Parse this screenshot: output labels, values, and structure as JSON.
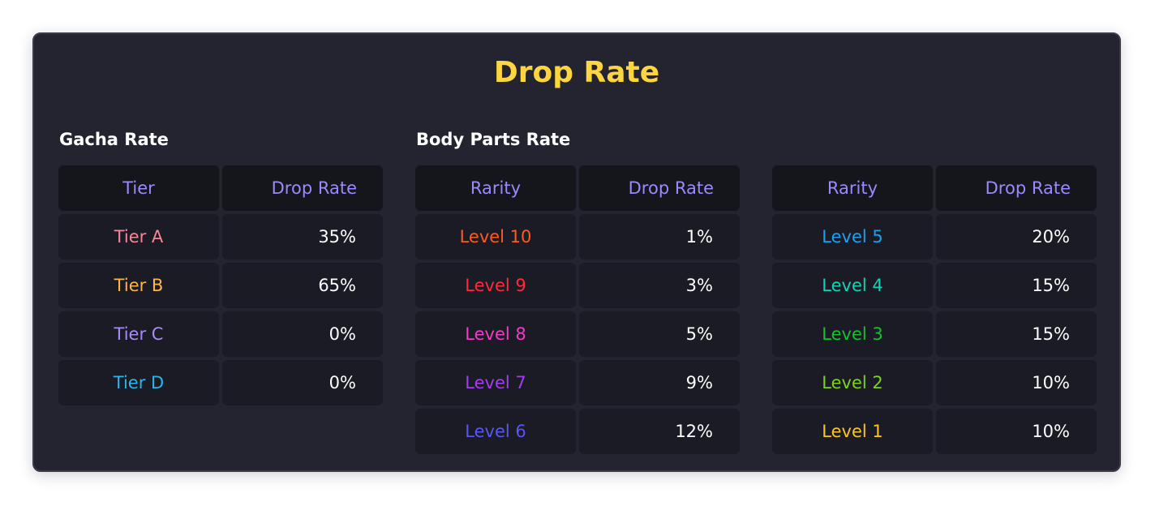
{
  "title": "Drop Rate",
  "colors": {
    "title": "#fcd53f",
    "header_text": "#9b8afb",
    "panel_bg": "#232430",
    "cell_bg": "#1a1b24"
  },
  "gacha": {
    "section_title": "Gacha Rate",
    "headers": [
      "Tier",
      "Drop Rate"
    ],
    "rows": [
      {
        "label": "Tier A",
        "rate": "35%",
        "color": "#f5879a"
      },
      {
        "label": "Tier B",
        "rate": "65%",
        "color": "#fdb44a"
      },
      {
        "label": "Tier C",
        "rate": "0%",
        "color": "#a98bf8"
      },
      {
        "label": "Tier D",
        "rate": "0%",
        "color": "#2cb5e8"
      }
    ]
  },
  "body_parts": {
    "section_title": "Body Parts Rate",
    "left_table": {
      "headers": [
        "Rarity",
        "Drop Rate"
      ],
      "rows": [
        {
          "label": "Level 10",
          "rate": "1%",
          "color": "#ff5a1f"
        },
        {
          "label": "Level 9",
          "rate": "3%",
          "color": "#ff2a3a"
        },
        {
          "label": "Level 8",
          "rate": "5%",
          "color": "#f33ac8"
        },
        {
          "label": "Level 7",
          "rate": "9%",
          "color": "#a63cf0"
        },
        {
          "label": "Level 6",
          "rate": "12%",
          "color": "#5857f5"
        }
      ]
    },
    "right_table": {
      "headers": [
        "Rarity",
        "Drop Rate"
      ],
      "rows": [
        {
          "label": "Level 5",
          "rate": "20%",
          "color": "#1ea0f0"
        },
        {
          "label": "Level 4",
          "rate": "15%",
          "color": "#12d4b4"
        },
        {
          "label": "Level 3",
          "rate": "15%",
          "color": "#12c22e"
        },
        {
          "label": "Level 2",
          "rate": "10%",
          "color": "#7cd31c"
        },
        {
          "label": "Level 1",
          "rate": "10%",
          "color": "#fbc51f"
        }
      ]
    }
  }
}
